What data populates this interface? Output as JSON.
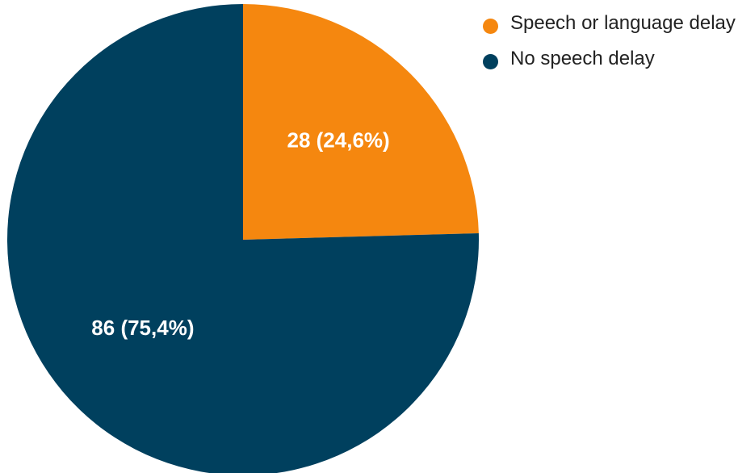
{
  "chart_data": {
    "type": "pie",
    "title": "",
    "slices": [
      {
        "name": "Speech or language delay",
        "value": 28,
        "percent": 24.6,
        "label": "28 (24,6%)",
        "color": "#F5870F"
      },
      {
        "name": "No speech delay",
        "value": 86,
        "percent": 75.4,
        "label": "86 (75,4%)",
        "color": "#00405E"
      }
    ],
    "start_angle_deg": 0,
    "direction": "clockwise",
    "legend_position": "top-right"
  }
}
